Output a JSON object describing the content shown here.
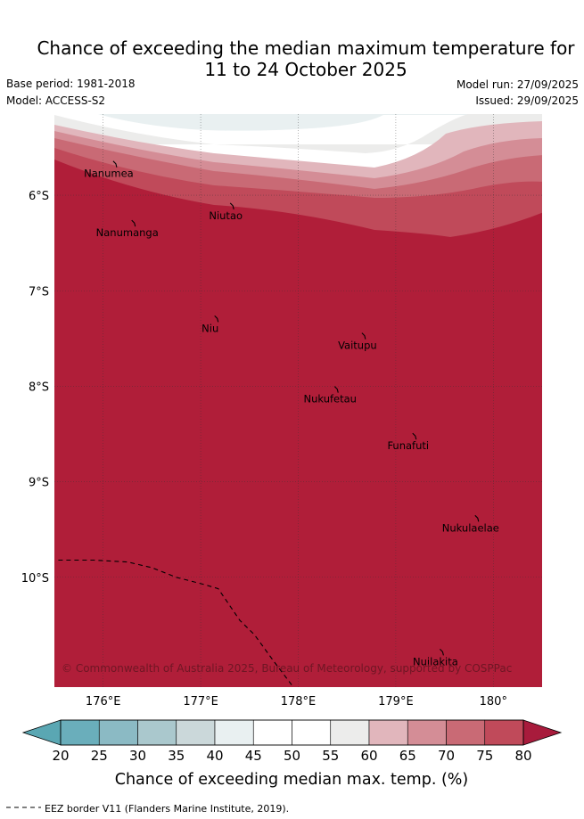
{
  "title": {
    "line1": "Chance of exceeding the median maximum temperature for",
    "line2": "11 to 24 October 2025"
  },
  "meta": {
    "base_period": "Base period: 1981-2018",
    "model": "Model: ACCESS-S2",
    "model_run": "Model run: 27/09/2025",
    "issued": "Issued: 29/09/2025"
  },
  "map": {
    "lon_range": [
      175.5,
      180.5
    ],
    "lat_range": [
      -5.15,
      -11.15
    ],
    "lon_ticks": [
      {
        "value": 176,
        "label": "176°E"
      },
      {
        "value": 177,
        "label": "177°E"
      },
      {
        "value": 178,
        "label": "178°E"
      },
      {
        "value": 179,
        "label": "179°E"
      },
      {
        "value": 180,
        "label": "180°"
      }
    ],
    "lat_ticks": [
      {
        "value": -6,
        "label": "6°S"
      },
      {
        "value": -7,
        "label": "7°S"
      },
      {
        "value": -8,
        "label": "8°S"
      },
      {
        "value": -9,
        "label": "9°S"
      },
      {
        "value": -10,
        "label": "10°S"
      }
    ],
    "islands": [
      {
        "name": "Nanumea",
        "lon": 176.13,
        "lat": -5.67
      },
      {
        "name": "Nanumanga",
        "lon": 176.32,
        "lat": -6.29
      },
      {
        "name": "Niutao",
        "lon": 177.33,
        "lat": -6.11
      },
      {
        "name": "Niu",
        "lon": 177.17,
        "lat": -7.29
      },
      {
        "name": "Vaitupu",
        "lon": 178.68,
        "lat": -7.47
      },
      {
        "name": "Nukufetau",
        "lon": 178.4,
        "lat": -8.03
      },
      {
        "name": "Funafuti",
        "lon": 179.2,
        "lat": -8.52
      },
      {
        "name": "Nukulaelae",
        "lon": 179.84,
        "lat": -9.38
      },
      {
        "name": "Nuilakita",
        "lon": 179.48,
        "lat": -10.78
      }
    ],
    "eez_border_points": [
      [
        175.54,
        -9.82
      ],
      [
        175.9,
        -9.82
      ],
      [
        176.25,
        -9.84
      ],
      [
        176.5,
        -9.9
      ],
      [
        176.75,
        -10.0
      ],
      [
        177.05,
        -10.08
      ],
      [
        177.18,
        -10.12
      ],
      [
        177.4,
        -10.45
      ],
      [
        177.55,
        -10.6
      ],
      [
        177.75,
        -10.88
      ],
      [
        177.95,
        -11.15
      ]
    ],
    "colors": {
      "band_80": "#b01e39",
      "band_75": "#c04a5a",
      "band_70": "#c96a75",
      "band_65": "#d48d96",
      "band_60": "#e1b6bc",
      "band_55": "#ececeb",
      "band_50": "#ffffff",
      "band_45": "#ffffff",
      "band_40": "#e9f0f1",
      "band_35": "#cfdcdf"
    },
    "credit": "© Commonwealth of Australia 2025, Bureau of Meteorology, supported by COSPPac"
  },
  "colorbar": {
    "ticks": [
      "20",
      "25",
      "30",
      "35",
      "40",
      "45",
      "50",
      "55",
      "60",
      "65",
      "70",
      "75",
      "80"
    ],
    "under_color": "#5aa7b3",
    "over_color": "#a81b3c",
    "colors": [
      "#6aaebb",
      "#8bbac4",
      "#aac8cd",
      "#cbd8da",
      "#e9f0f1",
      "#ffffff",
      "#ffffff",
      "#ececeb",
      "#e1b6bc",
      "#d48d96",
      "#c96a75",
      "#c04a5a"
    ],
    "label": "Chance of exceeding median max. temp. (%)"
  },
  "footer": {
    "legend_text": "EEZ border V11 (Flanders Marine Institute, 2019)."
  }
}
